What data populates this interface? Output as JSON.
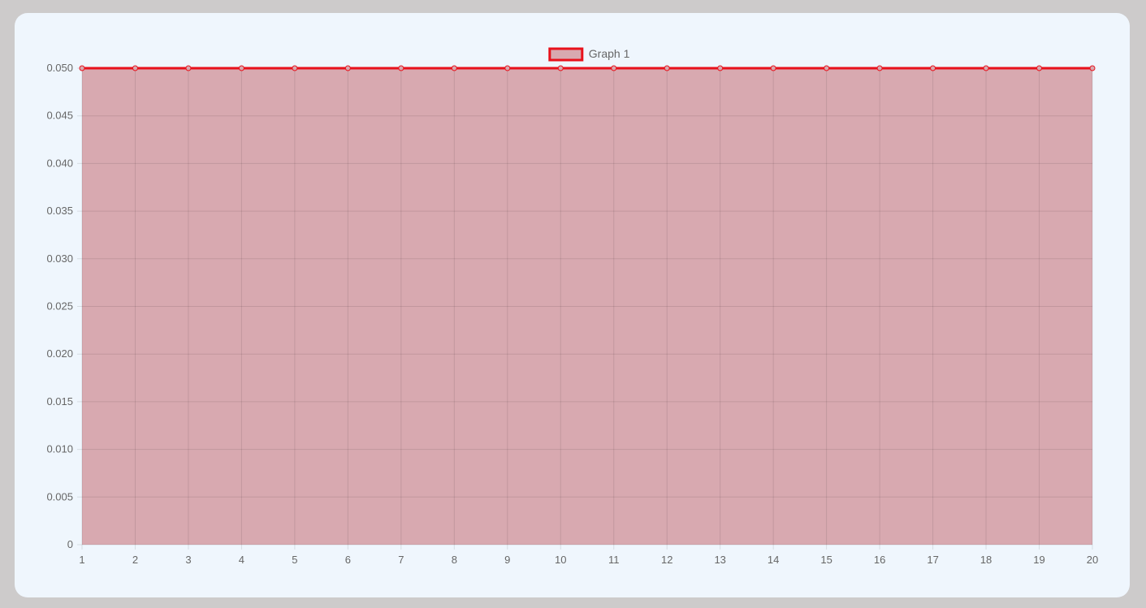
{
  "chart_data": {
    "type": "area",
    "x": [
      1,
      2,
      3,
      4,
      5,
      6,
      7,
      8,
      9,
      10,
      11,
      12,
      13,
      14,
      15,
      16,
      17,
      18,
      19,
      20
    ],
    "series": [
      {
        "name": "Graph 1",
        "values": [
          0.05,
          0.05,
          0.05,
          0.05,
          0.05,
          0.05,
          0.05,
          0.05,
          0.05,
          0.05,
          0.05,
          0.05,
          0.05,
          0.05,
          0.05,
          0.05,
          0.05,
          0.05,
          0.05,
          0.05
        ],
        "line_color": "#e8111b",
        "fill_color": "#d8a9b0"
      }
    ],
    "y_ticks": [
      "0",
      "0.005",
      "0.010",
      "0.015",
      "0.020",
      "0.025",
      "0.030",
      "0.035",
      "0.040",
      "0.045",
      "0.050"
    ],
    "ylim": [
      0,
      0.05
    ],
    "xlim": [
      1,
      20
    ],
    "grid": true,
    "legend_position": "top-center",
    "title": "",
    "xlabel": "",
    "ylabel": ""
  }
}
